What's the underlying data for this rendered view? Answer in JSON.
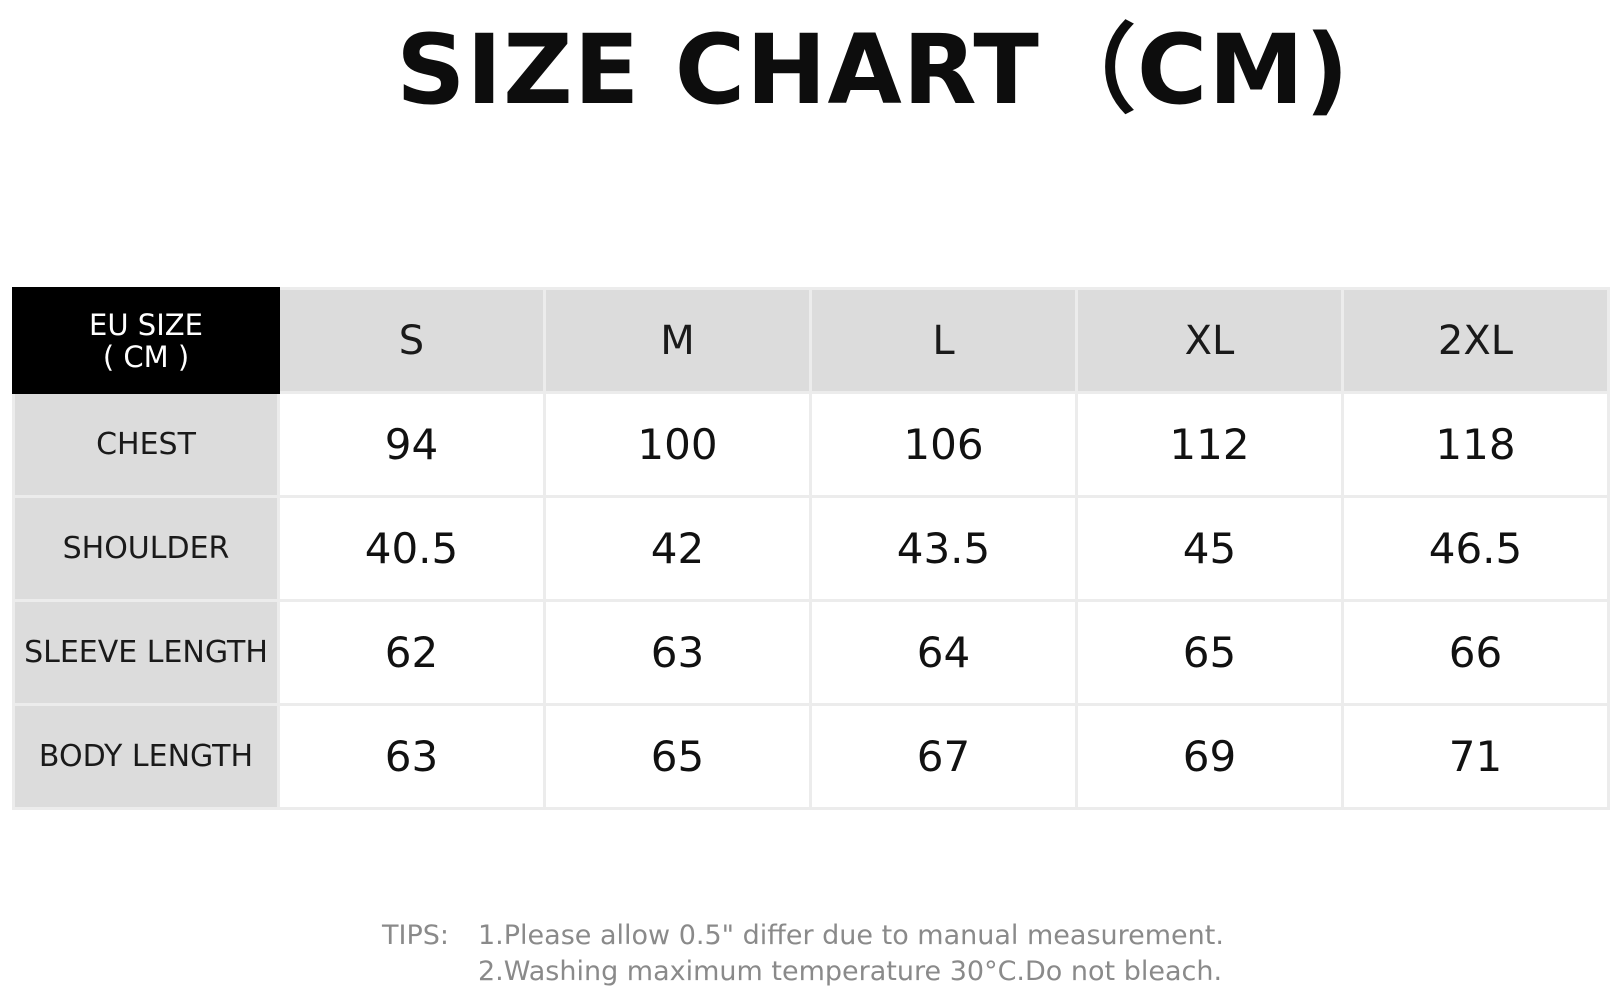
{
  "title": "SIZE CHART（CM)",
  "table": {
    "corner_line1": "EU SIZE",
    "corner_line2": "( CM )",
    "sizes": [
      "S",
      "M",
      "L",
      "XL",
      "2XL"
    ],
    "rows": [
      {
        "label": "CHEST",
        "values": [
          "94",
          "100",
          "106",
          "112",
          "118"
        ]
      },
      {
        "label": "SHOULDER",
        "values": [
          "40.5",
          "42",
          "43.5",
          "45",
          "46.5"
        ]
      },
      {
        "label": "SLEEVE LENGTH",
        "values": [
          "62",
          "63",
          "64",
          "65",
          "66"
        ]
      },
      {
        "label": "BODY LENGTH",
        "values": [
          "63",
          "65",
          "67",
          "69",
          "71"
        ]
      }
    ]
  },
  "tips": {
    "label": "TIPS:",
    "line1": "1.Please allow 0.5\" differ due to manual measurement.",
    "line2": "2.Washing maximum temperature 30°C.Do not bleach."
  }
}
